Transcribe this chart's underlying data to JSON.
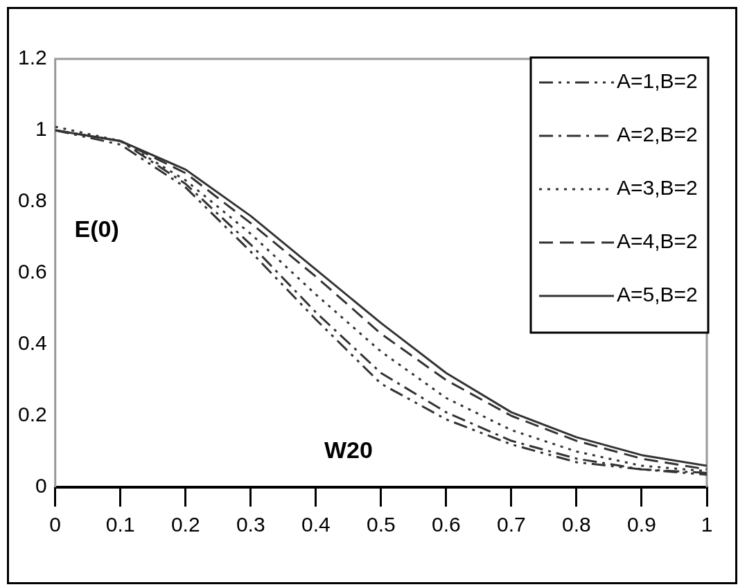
{
  "chart_data": {
    "type": "line",
    "xlabel": "W20",
    "ylabel": "E(0)",
    "x": [
      0,
      0.1,
      0.2,
      0.3,
      0.4,
      0.5,
      0.6,
      0.7,
      0.8,
      0.9,
      1
    ],
    "xlim": [
      0,
      1
    ],
    "xticks": [
      0,
      0.1,
      0.2,
      0.3,
      0.4,
      0.5,
      0.6,
      0.7,
      0.8,
      0.9,
      1
    ],
    "ylim": [
      0,
      1.2
    ],
    "yticks": [
      0,
      0.2,
      0.4,
      0.6,
      0.8,
      1,
      1.2
    ],
    "grid": false,
    "legend": "top right",
    "marker": "none",
    "series": [
      {
        "name": "A=1,B=2",
        "color": "#333333",
        "line_style": "dashdotdot",
        "values": [
          1.0,
          0.96,
          0.84,
          0.66,
          0.47,
          0.29,
          0.19,
          0.12,
          0.07,
          0.05,
          0.035
        ]
      },
      {
        "name": "A=2,B=2",
        "color": "#333333",
        "line_style": "dashdot",
        "values": [
          1.0,
          0.97,
          0.85,
          0.68,
          0.49,
          0.32,
          0.21,
          0.13,
          0.08,
          0.05,
          0.04
        ]
      },
      {
        "name": "A=3,B=2",
        "color": "#333333",
        "line_style": "dotted",
        "values": [
          1.01,
          0.97,
          0.86,
          0.71,
          0.54,
          0.38,
          0.25,
          0.16,
          0.1,
          0.06,
          0.045
        ]
      },
      {
        "name": "A=4,B=2",
        "color": "#333333",
        "line_style": "dashed",
        "values": [
          1.0,
          0.97,
          0.88,
          0.74,
          0.59,
          0.43,
          0.3,
          0.2,
          0.13,
          0.08,
          0.05
        ]
      },
      {
        "name": "A=5,B=2",
        "color": "#333333",
        "line_style": "solid",
        "values": [
          1.0,
          0.97,
          0.89,
          0.76,
          0.61,
          0.46,
          0.32,
          0.21,
          0.14,
          0.09,
          0.06
        ]
      }
    ]
  }
}
